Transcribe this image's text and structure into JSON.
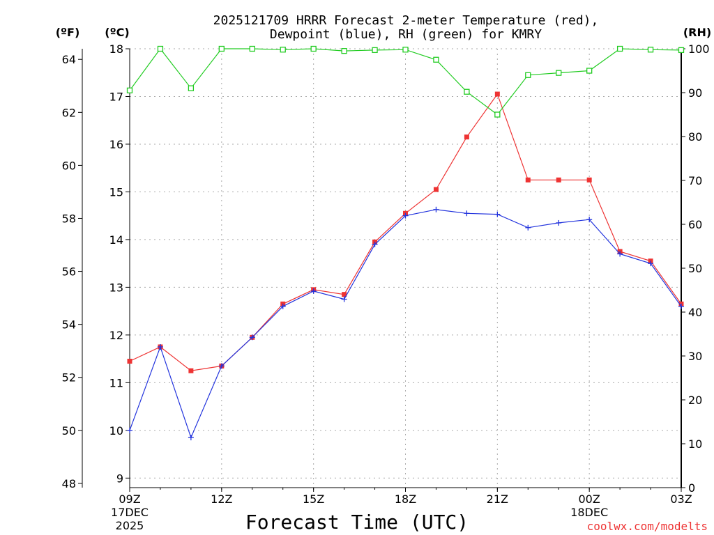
{
  "chart_data": {
    "type": "line",
    "title_line1": "2025121709 HRRR Forecast 2-meter Temperature (red),",
    "title_line2": "Dewpoint (blue), RH (green) for KMRY",
    "xlabel": "Forecast Time (UTC)",
    "credit": "coolwx.com/modelts",
    "unit_left_f": "(ºF)",
    "unit_left_c": "(ºC)",
    "unit_right": "(RH)",
    "x_hours": [
      0,
      1,
      2,
      3,
      4,
      5,
      6,
      7,
      8,
      9,
      10,
      11,
      12,
      13,
      14,
      15,
      16,
      17,
      18
    ],
    "xlim": [
      0,
      18
    ],
    "x_ticks": [
      {
        "hour": 0,
        "label": "09Z",
        "sub1": "17DEC",
        "sub2": "2025"
      },
      {
        "hour": 3,
        "label": "12Z",
        "sub1": "",
        "sub2": ""
      },
      {
        "hour": 6,
        "label": "15Z",
        "sub1": "",
        "sub2": ""
      },
      {
        "hour": 9,
        "label": "18Z",
        "sub1": "",
        "sub2": ""
      },
      {
        "hour": 12,
        "label": "21Z",
        "sub1": "",
        "sub2": ""
      },
      {
        "hour": 15,
        "label": "00Z",
        "sub1": "18DEC",
        "sub2": ""
      },
      {
        "hour": 18,
        "label": "03Z",
        "sub1": "",
        "sub2": ""
      }
    ],
    "c_axis": {
      "ylim": [
        8.8,
        18.0
      ],
      "ticks": [
        9,
        10,
        11,
        12,
        13,
        14,
        15,
        16,
        17,
        18
      ]
    },
    "f_axis": {
      "ylim": [
        47.84,
        64.4
      ],
      "ticks": [
        48,
        50,
        52,
        54,
        56,
        58,
        60,
        62,
        64
      ]
    },
    "rh_axis": {
      "ylim": [
        0,
        100
      ],
      "ticks": [
        0,
        10,
        20,
        30,
        40,
        50,
        60,
        70,
        80,
        90,
        100
      ]
    },
    "series": [
      {
        "name": "Temperature",
        "unit": "°C",
        "color": "#ee3333",
        "marker": "filled-square",
        "values": [
          11.45,
          11.75,
          11.25,
          11.35,
          11.95,
          12.65,
          12.95,
          12.85,
          13.95,
          14.55,
          15.05,
          16.15,
          17.05,
          15.25,
          15.25,
          15.25,
          13.75,
          13.55,
          12.65
        ]
      },
      {
        "name": "Dewpoint",
        "unit": "°C",
        "color": "#2233dd",
        "marker": "plus",
        "values": [
          10.0,
          11.75,
          9.85,
          11.35,
          11.95,
          12.6,
          12.92,
          12.75,
          13.9,
          14.5,
          14.63,
          14.55,
          14.53,
          14.25,
          14.35,
          14.42,
          13.7,
          13.5,
          12.6
        ]
      },
      {
        "name": "RH",
        "unit": "%",
        "color": "#22cc22",
        "marker": "open-square",
        "values": [
          90.5,
          100,
          91,
          100,
          100,
          99.8,
          100,
          99.5,
          99.7,
          99.8,
          97.5,
          90.2,
          85,
          94,
          94.5,
          95,
          100,
          99.8,
          99.7
        ]
      }
    ]
  }
}
